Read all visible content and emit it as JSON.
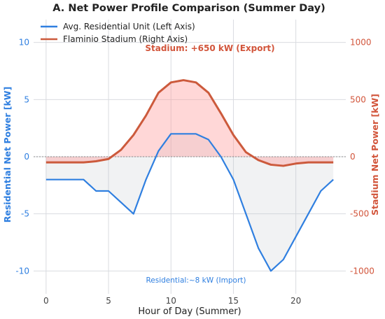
{
  "chart_data": {
    "type": "line",
    "title": "A. Net Power Profile Comparison (Summer Day)",
    "xlabel": "Hour of Day (Summer)",
    "ylabel_left": "Residential Net Power [kW]",
    "ylabel_right": "Stadium Net Power [kW]",
    "xlim": [
      -1,
      24
    ],
    "ylim_left": [
      -12,
      12
    ],
    "ylim_right": [
      -1200,
      1200
    ],
    "x_ticks": [
      0,
      5,
      10,
      15,
      20
    ],
    "y_ticks_left": [
      -10,
      -5,
      0,
      5,
      10
    ],
    "y_ticks_right": [
      -1000,
      -500,
      0,
      500,
      1000
    ],
    "x": [
      0,
      1,
      2,
      3,
      4,
      5,
      6,
      7,
      8,
      9,
      10,
      11,
      12,
      13,
      14,
      15,
      16,
      17,
      18,
      19,
      20,
      21,
      22,
      23
    ],
    "series": [
      {
        "name": "Avg. Residential Unit (Left Axis)",
        "axis": "left",
        "color": "#2f7fe0",
        "fill": "#bfc3c8",
        "values": [
          -2,
          -2,
          -2,
          -2,
          -3,
          -3,
          -4,
          -5,
          -2,
          0.5,
          2,
          2,
          2,
          1.5,
          0,
          -2,
          -5,
          -8,
          -10,
          -9,
          -7,
          -5,
          -3,
          -2
        ]
      },
      {
        "name": "Flaminio Stadium (Right Axis)",
        "axis": "right",
        "color": "#cc5a3c",
        "fill": "#ff9b9b",
        "values": [
          -50,
          -50,
          -50,
          -50,
          -40,
          -20,
          60,
          190,
          360,
          560,
          650,
          670,
          650,
          560,
          380,
          190,
          40,
          -30,
          -70,
          -80,
          -60,
          -50,
          -50,
          -50
        ]
      }
    ],
    "grid": true,
    "legend_position": "top-left",
    "annotations": [
      {
        "text": "Stadium: +650 kW (Export)",
        "color": "#d2553b"
      },
      {
        "text": "Residential:~8 kW (Import)",
        "color": "#2f7fe0"
      }
    ]
  }
}
